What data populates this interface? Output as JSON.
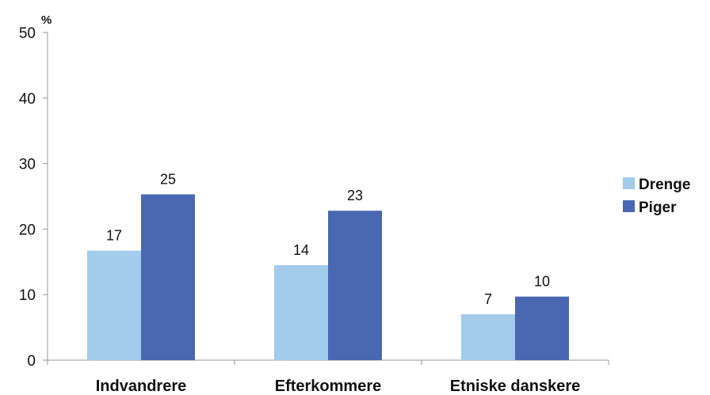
{
  "chart_data": {
    "type": "bar",
    "unit_label": "%",
    "categories": [
      "Indvandrere",
      "Efterkommere",
      "Etniske danskere"
    ],
    "series": [
      {
        "name": "Drenge",
        "values": [
          17,
          14,
          7
        ],
        "plotted": [
          16.7,
          14.5,
          7
        ],
        "color": "#a3cbea"
      },
      {
        "name": "Piger",
        "values": [
          25,
          23,
          10
        ],
        "plotted": [
          25.3,
          22.8,
          9.7
        ],
        "color": "#4a67b1"
      }
    ],
    "ylim": [
      0,
      50
    ],
    "yticks": [
      0,
      10,
      20,
      30,
      40,
      50
    ],
    "grid": false,
    "legend_position": "right"
  }
}
